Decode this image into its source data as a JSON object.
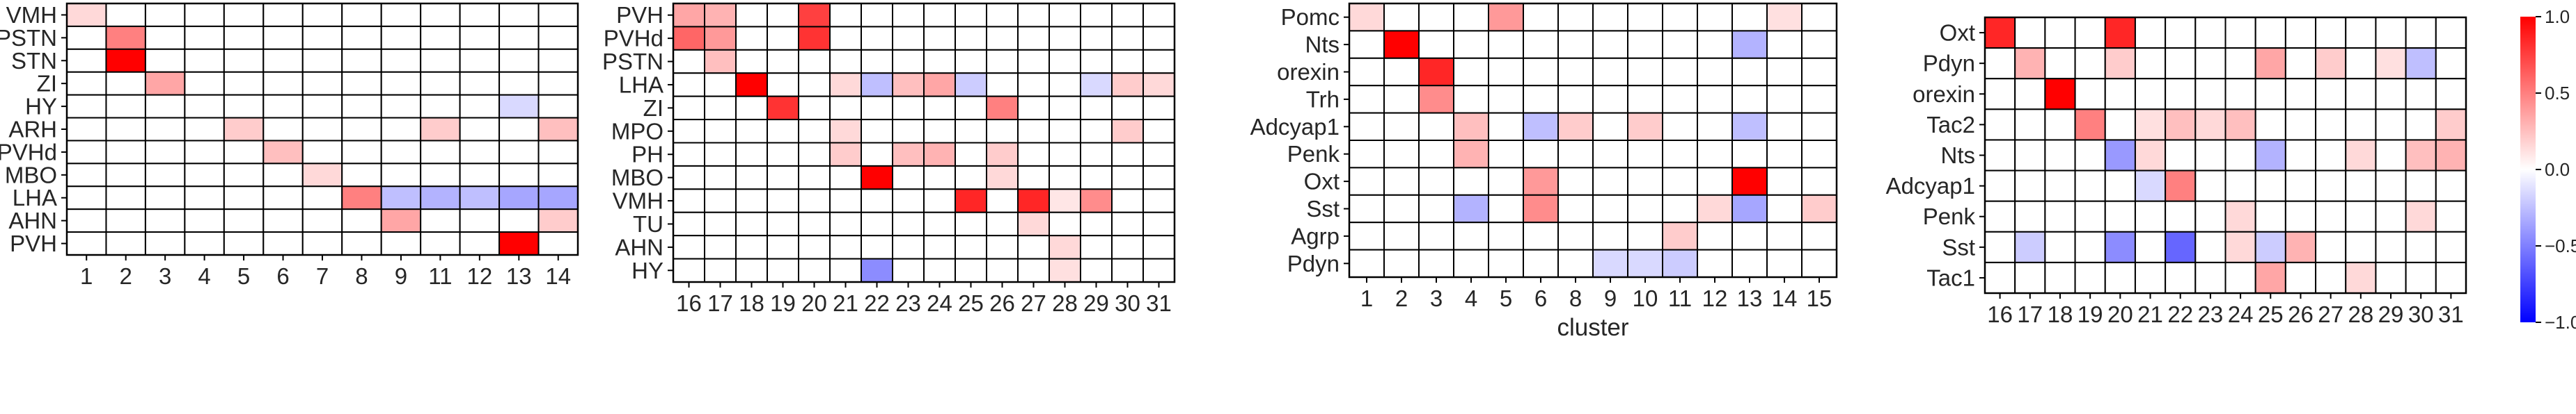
{
  "colors": {
    "neg": "#0000ff",
    "zero": "#ffffff",
    "pos": "#ff0000",
    "grid": "#000000",
    "text": "#262626"
  },
  "chart_data": [
    {
      "type": "heatmap",
      "rows": [
        "VMH",
        "PSTN",
        "STN",
        "ZI",
        "HY",
        "ARH",
        "PVHd",
        "MBO",
        "LHA",
        "AHN",
        "PVH"
      ],
      "columns": [
        "1",
        "2",
        "3",
        "4",
        "5",
        "6",
        "7",
        "8",
        "9",
        "11",
        "12",
        "13",
        "14"
      ],
      "values": [
        [
          0.15,
          0,
          0,
          0,
          0,
          0,
          0,
          0,
          0,
          0,
          0,
          0,
          0
        ],
        [
          0,
          0.5,
          0,
          0,
          0,
          0,
          0,
          0,
          0,
          0,
          0,
          0,
          0
        ],
        [
          0,
          1.0,
          0,
          0,
          0,
          0,
          0,
          0,
          0,
          0,
          0,
          0,
          0
        ],
        [
          0,
          0,
          0.35,
          0,
          0,
          0,
          0,
          0,
          0,
          0,
          0,
          0,
          0
        ],
        [
          0,
          0,
          0,
          0,
          0,
          0,
          0,
          0,
          0,
          0,
          0,
          -0.15,
          0
        ],
        [
          0,
          0,
          0,
          0,
          0.2,
          0,
          0,
          0,
          0,
          0.2,
          0,
          0,
          0.25
        ],
        [
          0,
          0,
          0,
          0,
          0,
          0.25,
          0,
          0,
          0,
          0,
          0,
          0,
          0
        ],
        [
          0,
          0,
          0,
          0,
          0,
          0,
          0.15,
          0,
          0,
          0,
          0,
          0,
          0
        ],
        [
          0,
          0,
          0,
          0,
          0,
          0,
          0,
          0.5,
          -0.25,
          -0.3,
          -0.25,
          -0.35,
          -0.35
        ],
        [
          0,
          0,
          0,
          0,
          0,
          0,
          0,
          0,
          0.35,
          0,
          0,
          0,
          0.2
        ],
        [
          0,
          0,
          0,
          0,
          0,
          0,
          0,
          0,
          0,
          0,
          0,
          1.0,
          0
        ]
      ],
      "xlabel": "",
      "ylabel": ""
    },
    {
      "type": "heatmap",
      "rows": [
        "PVH",
        "PVHd",
        "PSTN",
        "LHA",
        "ZI",
        "MPO",
        "PH",
        "MBO",
        "VMH",
        "TU",
        "AHN",
        "HY"
      ],
      "columns": [
        "16",
        "17",
        "18",
        "19",
        "20",
        "21",
        "22",
        "23",
        "24",
        "25",
        "26",
        "27",
        "28",
        "29",
        "30",
        "31"
      ],
      "values": [
        [
          0.35,
          0.3,
          0,
          0,
          0.75,
          0,
          0,
          0,
          0,
          0,
          0,
          0,
          0,
          0,
          0,
          0
        ],
        [
          0.6,
          0.4,
          0,
          0,
          0.8,
          0,
          0,
          0,
          0,
          0,
          0,
          0,
          0,
          0,
          0,
          0
        ],
        [
          0,
          0.25,
          0,
          0,
          0,
          0,
          0,
          0,
          0,
          0,
          0,
          0,
          0,
          0,
          0,
          0
        ],
        [
          0,
          0,
          1.0,
          0,
          0,
          0.15,
          -0.25,
          0.25,
          0.35,
          -0.2,
          0,
          0,
          0,
          -0.15,
          0.2,
          0.15
        ],
        [
          0,
          0,
          0,
          0.8,
          0,
          0,
          0,
          0,
          0,
          0,
          0.5,
          0,
          0,
          0,
          0,
          0
        ],
        [
          0,
          0,
          0,
          0,
          0,
          0.15,
          0,
          0,
          0,
          0,
          0,
          0,
          0,
          0,
          0.2,
          0
        ],
        [
          0,
          0,
          0,
          0,
          0,
          0.2,
          0,
          0.25,
          0.3,
          0,
          0.2,
          0,
          0,
          0,
          0,
          0
        ],
        [
          0,
          0,
          0,
          0,
          0,
          0,
          1.0,
          0,
          0,
          0,
          0.15,
          0,
          0,
          0,
          0,
          0
        ],
        [
          0,
          0,
          0,
          0,
          0,
          0,
          0,
          0,
          0,
          0.85,
          0,
          0.85,
          0.1,
          0.45,
          0,
          0
        ],
        [
          0,
          0,
          0,
          0,
          0,
          0,
          0,
          0,
          0,
          0,
          0,
          0.15,
          0,
          0,
          0,
          0
        ],
        [
          0,
          0,
          0,
          0,
          0,
          0,
          0,
          0,
          0,
          0,
          0,
          0,
          0.15,
          0,
          0,
          0
        ],
        [
          0,
          0,
          0,
          0,
          0,
          0,
          -0.45,
          0,
          0,
          0,
          0,
          0,
          0.12,
          0,
          0,
          0
        ]
      ],
      "xlabel": "",
      "ylabel": ""
    },
    {
      "type": "heatmap",
      "rows": [
        "Pomc",
        "Nts",
        "orexin",
        "Trh",
        "Adcyap1",
        "Penk",
        "Oxt",
        "Sst",
        "Agrp",
        "Pdyn"
      ],
      "columns": [
        "1",
        "2",
        "3",
        "4",
        "5",
        "6",
        "8",
        "9",
        "10",
        "11",
        "12",
        "13",
        "14",
        "15"
      ],
      "values": [
        [
          0.15,
          0,
          0,
          0,
          0.4,
          0,
          0,
          0,
          0,
          0,
          0,
          0,
          0.12,
          0
        ],
        [
          0,
          1.0,
          0,
          0,
          0,
          0,
          0,
          0,
          0,
          0,
          0,
          -0.3,
          0,
          0
        ],
        [
          0,
          0,
          0.85,
          0,
          0,
          0,
          0,
          0,
          0,
          0,
          0,
          0,
          0,
          0
        ],
        [
          0,
          0,
          0.45,
          0,
          0,
          0,
          0,
          0,
          0,
          0,
          0,
          0,
          0,
          0
        ],
        [
          0,
          0,
          0,
          0.25,
          0,
          -0.25,
          0.2,
          0,
          0.2,
          0,
          0,
          -0.25,
          0,
          0
        ],
        [
          0,
          0,
          0,
          0.3,
          0,
          0,
          0,
          0,
          0,
          0,
          0,
          0,
          0,
          0
        ],
        [
          0,
          0,
          0,
          0,
          0,
          0.4,
          0,
          0,
          0,
          0,
          0,
          1.0,
          0,
          0
        ],
        [
          0,
          0,
          0,
          -0.3,
          0,
          0.45,
          0,
          0,
          0,
          0,
          0.15,
          -0.35,
          0,
          0.2
        ],
        [
          0,
          0,
          0,
          0,
          0,
          0,
          0,
          0,
          0,
          0.2,
          0,
          0,
          0,
          0
        ],
        [
          0,
          0,
          0,
          0,
          0,
          0,
          0,
          -0.15,
          -0.15,
          -0.2,
          0,
          0,
          0,
          0
        ]
      ],
      "xlabel": "cluster",
      "ylabel": ""
    },
    {
      "type": "heatmap",
      "rows": [
        "Oxt",
        "Pdyn",
        "orexin",
        "Tac2",
        "Nts",
        "Adcyap1",
        "Penk",
        "Sst",
        "Tac1"
      ],
      "columns": [
        "16",
        "17",
        "18",
        "19",
        "20",
        "21",
        "22",
        "23",
        "24",
        "25",
        "26",
        "27",
        "28",
        "29",
        "30",
        "31"
      ],
      "values": [
        [
          0.85,
          0,
          0,
          0,
          0.85,
          0,
          0,
          0,
          0,
          0,
          0,
          0,
          0,
          0,
          0,
          0
        ],
        [
          0,
          0.3,
          0,
          0,
          0.2,
          0,
          0,
          0,
          0,
          0.35,
          0,
          0.2,
          0,
          0.12,
          -0.25,
          0
        ],
        [
          0,
          0,
          1.0,
          0,
          0,
          0,
          0,
          0,
          0,
          0,
          0,
          0,
          0,
          0,
          0,
          0
        ],
        [
          0,
          0,
          0,
          0.5,
          0,
          0.12,
          0.25,
          0.15,
          0.25,
          0,
          0,
          0,
          0,
          0,
          0,
          0.2
        ],
        [
          0,
          0,
          0,
          0,
          -0.4,
          0.15,
          0,
          0,
          0,
          -0.3,
          0,
          0,
          0.15,
          0,
          0.25,
          0.3
        ],
        [
          0,
          0,
          0,
          0,
          0,
          -0.15,
          0.5,
          0,
          0,
          0,
          0,
          0,
          0,
          0,
          0,
          0
        ],
        [
          0,
          0,
          0,
          0,
          0,
          0,
          0,
          0,
          0.15,
          0,
          0,
          0,
          0,
          0,
          0.15,
          0
        ],
        [
          0,
          -0.2,
          0,
          0,
          -0.45,
          0,
          -0.6,
          0,
          0.15,
          -0.2,
          0.3,
          0,
          0,
          0,
          0,
          0
        ],
        [
          0,
          0,
          0,
          0,
          0,
          0,
          0,
          0,
          0,
          0.35,
          0,
          0,
          0.15,
          0,
          0,
          0
        ]
      ],
      "xlabel": "",
      "ylabel": ""
    }
  ],
  "colorbar": {
    "ticks": [
      "1.0",
      "0.5",
      "0.0",
      "−0.5",
      "−1.0"
    ],
    "min": -1,
    "max": 1
  }
}
